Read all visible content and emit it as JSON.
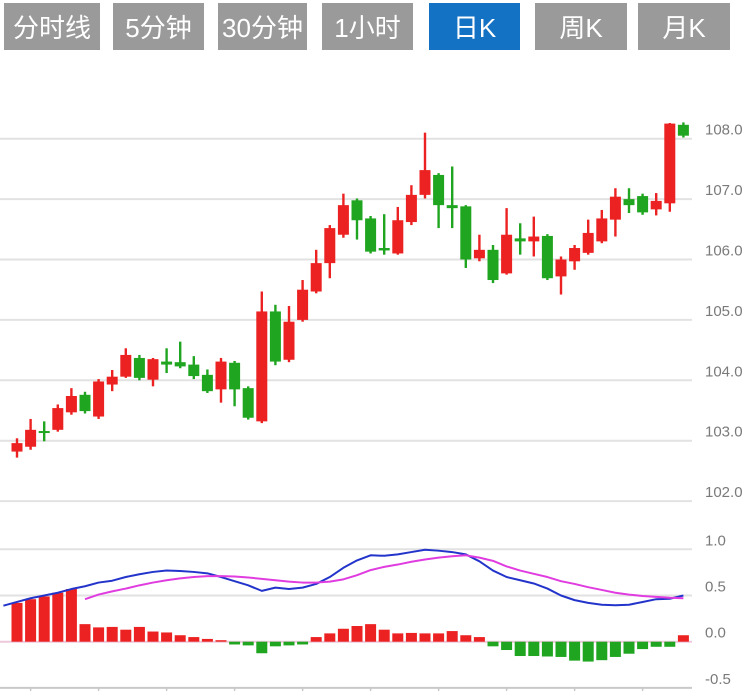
{
  "toolbar": {
    "buttons": [
      {
        "label": "分时线",
        "active": false
      },
      {
        "label": "5分钟",
        "active": false
      },
      {
        "label": "30分钟",
        "active": false
      },
      {
        "label": "1小时",
        "active": false
      },
      {
        "label": "日K",
        "active": true
      },
      {
        "label": "周K",
        "active": false
      },
      {
        "label": "月K",
        "active": false
      }
    ],
    "active_color": "#1372c4",
    "inactive_color": "#9a9a9a"
  },
  "chart_data": {
    "type": "candlestick+macd",
    "title": "",
    "legend_position": "none",
    "grid": true,
    "price_axis": {
      "side": "right",
      "ticks": [
        "108.0",
        "107.0",
        "106.0",
        "105.0",
        "104.0",
        "103.0",
        "102.0"
      ],
      "values": [
        108,
        107,
        106,
        105,
        104,
        103,
        102
      ],
      "range": [
        101.7,
        108.4
      ]
    },
    "macd_axis": {
      "side": "right",
      "ticks": [
        "1.0",
        "0.5",
        "0.0",
        "-0.5"
      ],
      "values": [
        1.0,
        0.5,
        0.0,
        -0.5
      ],
      "range": [
        -0.5,
        1.0
      ]
    },
    "candles_ohlc": [
      [
        102.82,
        103.04,
        102.72,
        102.96
      ],
      [
        102.9,
        103.36,
        102.85,
        103.18
      ],
      [
        103.16,
        103.32,
        102.99,
        103.13
      ],
      [
        103.18,
        103.6,
        103.15,
        103.54
      ],
      [
        103.47,
        103.87,
        103.43,
        103.74
      ],
      [
        103.76,
        103.81,
        103.45,
        103.49
      ],
      [
        103.4,
        104.02,
        103.36,
        103.98
      ],
      [
        103.93,
        104.17,
        103.82,
        104.06
      ],
      [
        104.06,
        104.53,
        104.04,
        104.42
      ],
      [
        104.37,
        104.42,
        104.0,
        104.04
      ],
      [
        104.01,
        104.37,
        103.9,
        104.35
      ],
      [
        104.31,
        104.53,
        104.12,
        104.26
      ],
      [
        104.3,
        104.64,
        104.2,
        104.23
      ],
      [
        104.26,
        104.4,
        104.02,
        104.07
      ],
      [
        104.09,
        104.18,
        103.79,
        103.82
      ],
      [
        103.85,
        104.37,
        103.63,
        104.31
      ],
      [
        104.29,
        104.32,
        103.57,
        103.85
      ],
      [
        103.87,
        103.9,
        103.35,
        103.38
      ],
      [
        103.32,
        105.47,
        103.29,
        105.14
      ],
      [
        105.14,
        105.25,
        104.25,
        104.31
      ],
      [
        104.34,
        105.23,
        104.3,
        104.97
      ],
      [
        105.0,
        105.66,
        104.97,
        105.5
      ],
      [
        105.47,
        106.16,
        105.44,
        105.94
      ],
      [
        105.94,
        106.57,
        105.69,
        106.52
      ],
      [
        106.41,
        107.09,
        106.36,
        106.9
      ],
      [
        106.98,
        107.01,
        106.33,
        106.65
      ],
      [
        106.68,
        106.72,
        106.1,
        106.13
      ],
      [
        106.19,
        106.75,
        106.08,
        106.15
      ],
      [
        106.1,
        106.87,
        106.08,
        106.65
      ],
      [
        106.62,
        107.23,
        106.57,
        107.07
      ],
      [
        107.07,
        108.1,
        107.01,
        107.48
      ],
      [
        107.4,
        107.43,
        106.52,
        106.9
      ],
      [
        106.9,
        107.54,
        106.52,
        106.85
      ],
      [
        106.88,
        106.9,
        105.86,
        106.0
      ],
      [
        106.02,
        106.41,
        105.97,
        106.16
      ],
      [
        106.16,
        106.24,
        105.61,
        105.66
      ],
      [
        105.77,
        106.85,
        105.75,
        106.41
      ],
      [
        106.35,
        106.6,
        106.08,
        106.3
      ],
      [
        106.3,
        106.71,
        106.05,
        106.38
      ],
      [
        106.39,
        106.42,
        105.66,
        105.69
      ],
      [
        105.72,
        106.05,
        105.42,
        106.0
      ],
      [
        105.97,
        106.24,
        105.83,
        106.19
      ],
      [
        106.11,
        106.66,
        106.08,
        106.44
      ],
      [
        106.3,
        106.82,
        106.27,
        106.68
      ],
      [
        106.66,
        107.18,
        106.38,
        107.04
      ],
      [
        107.0,
        107.18,
        106.77,
        106.9
      ],
      [
        107.05,
        107.09,
        106.74,
        106.78
      ],
      [
        106.83,
        107.1,
        106.73,
        106.97
      ],
      [
        106.93,
        108.26,
        106.79,
        108.25
      ],
      [
        108.23,
        108.27,
        108.02,
        108.05
      ]
    ],
    "macd": {
      "histogram": [
        0.42,
        0.46,
        0.49,
        0.53,
        0.57,
        0.19,
        0.155,
        0.16,
        0.13,
        0.16,
        0.11,
        0.1,
        0.07,
        0.05,
        0.03,
        0.01,
        -0.03,
        -0.04,
        -0.125,
        -0.05,
        -0.04,
        -0.03,
        0.05,
        0.09,
        0.14,
        0.17,
        0.19,
        0.13,
        0.09,
        0.095,
        0.09,
        0.09,
        0.115,
        0.07,
        0.05,
        -0.05,
        -0.09,
        -0.155,
        -0.155,
        -0.16,
        -0.165,
        -0.205,
        -0.215,
        -0.2,
        -0.165,
        -0.13,
        -0.08,
        -0.055,
        -0.055,
        0.07
      ],
      "dif": [
        0.43,
        0.47,
        0.5,
        0.53,
        0.57,
        0.6,
        0.64,
        0.66,
        0.7,
        0.73,
        0.755,
        0.77,
        0.765,
        0.755,
        0.74,
        0.7,
        0.655,
        0.61,
        0.55,
        0.585,
        0.57,
        0.585,
        0.625,
        0.7,
        0.8,
        0.88,
        0.935,
        0.93,
        0.945,
        0.97,
        0.995,
        0.985,
        0.97,
        0.945,
        0.87,
        0.77,
        0.7,
        0.665,
        0.63,
        0.575,
        0.5,
        0.45,
        0.42,
        0.4,
        0.395,
        0.4,
        0.43,
        0.46,
        0.465,
        0.5
      ],
      "dea_start_index": 5,
      "dea": [
        0.46,
        0.51,
        0.545,
        0.575,
        0.61,
        0.64,
        0.665,
        0.685,
        0.7,
        0.71,
        0.71,
        0.705,
        0.695,
        0.68,
        0.665,
        0.65,
        0.64,
        0.64,
        0.65,
        0.675,
        0.72,
        0.775,
        0.81,
        0.835,
        0.865,
        0.89,
        0.91,
        0.925,
        0.935,
        0.91,
        0.875,
        0.815,
        0.77,
        0.735,
        0.7,
        0.655,
        0.625,
        0.59,
        0.56,
        0.53,
        0.51,
        0.495,
        0.485,
        0.475,
        0.47
      ]
    },
    "x_axis": {
      "tick_count": 10,
      "tick_every_n_candles": 5,
      "labels_visible": false
    },
    "colors": {
      "up": "#ec2121",
      "down": "#20a520",
      "dif_line": "#2334cb",
      "dea_line": "#e03ce0",
      "grid": "#e2e2e2",
      "zero_line": "#edc9da",
      "x_axis_line": "#c9c9c9",
      "axis_text": "#7a7a7a"
    }
  }
}
